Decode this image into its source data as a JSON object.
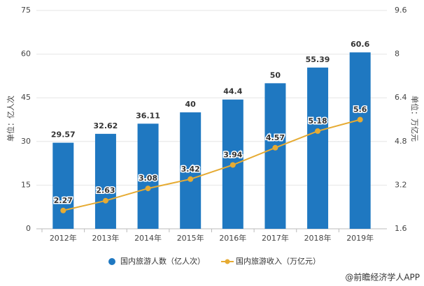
{
  "chart_data": {
    "type": "bar-line",
    "categories": [
      "2012年",
      "2013年",
      "2014年",
      "2015年",
      "2016年",
      "2017年",
      "2018年",
      "2019年"
    ],
    "series": [
      {
        "name": "国内旅游人数（亿人次）",
        "type": "bar",
        "color": "#1f78c1",
        "values": [
          29.57,
          32.62,
          36.11,
          40,
          44.4,
          50,
          55.39,
          60.6
        ]
      },
      {
        "name": "国内旅游收入（万亿元）",
        "type": "line",
        "axis": "y2",
        "color": "#e6ab33",
        "values": [
          2.27,
          2.63,
          3.08,
          3.42,
          3.94,
          4.57,
          5.18,
          5.6
        ]
      }
    ],
    "ylabel": "单位：亿人次",
    "y2label": "单位：万亿元",
    "ylim": [
      0,
      75
    ],
    "yticks": [
      0,
      15,
      30,
      45,
      60,
      75
    ],
    "y2lim": [
      1.6,
      9.6
    ],
    "y2ticks": [
      1.6,
      3.2,
      4.8,
      6.4,
      8,
      9.6
    ],
    "grid": true,
    "legend": "bottom",
    "source": "@前瞻经济学人APP"
  }
}
